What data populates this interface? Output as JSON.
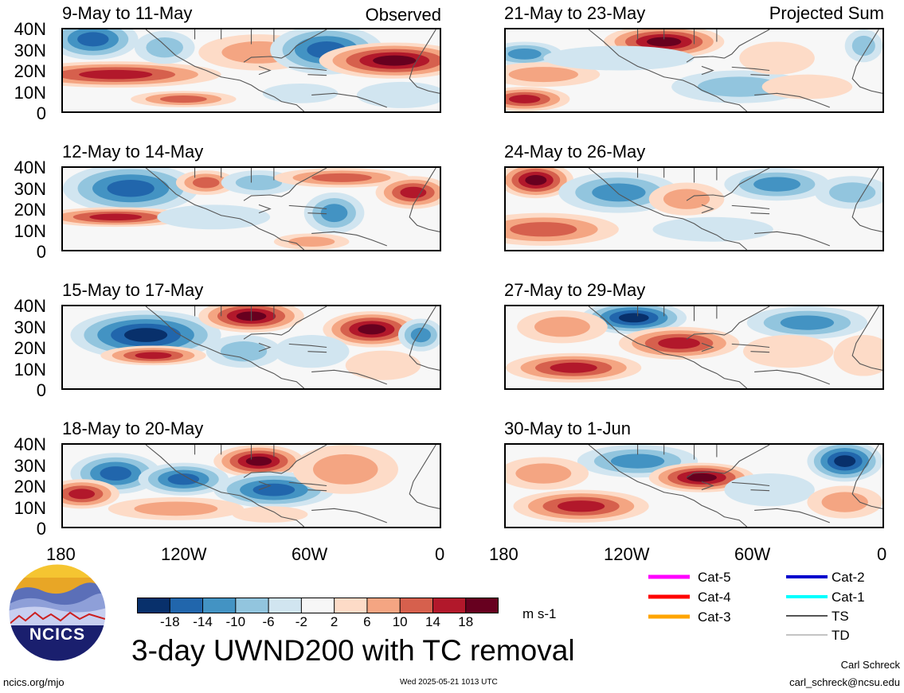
{
  "header": {
    "left_label": "Observed",
    "right_label": "Projected Sum"
  },
  "panels": [
    {
      "title": "9-May to 11-May",
      "pattern": 0
    },
    {
      "title": "12-May to 14-May",
      "pattern": 1
    },
    {
      "title": "15-May to 17-May",
      "pattern": 2
    },
    {
      "title": "18-May to 20-May",
      "pattern": 3
    },
    {
      "title": "21-May to 23-May",
      "pattern": 4
    },
    {
      "title": "24-May to 26-May",
      "pattern": 5
    },
    {
      "title": "27-May to 29-May",
      "pattern": 6
    },
    {
      "title": "30-May to 1-Jun",
      "pattern": 7
    }
  ],
  "axes": {
    "lat_labels": [
      "40N",
      "30N",
      "20N",
      "10N",
      "0"
    ],
    "lon_labels": [
      "180",
      "120W",
      "60W",
      "0"
    ]
  },
  "colorbar": {
    "colors": [
      "#08306b",
      "#2166ac",
      "#4393c3",
      "#92c5de",
      "#d1e5f0",
      "#f7f7f7",
      "#fddbc7",
      "#f4a582",
      "#d6604d",
      "#b2182b",
      "#67001f"
    ],
    "tick_labels": [
      "-18",
      "-14",
      "-10",
      "-6",
      "-2",
      "2",
      "6",
      "10",
      "14",
      "18"
    ],
    "units": "m s-1"
  },
  "legend": {
    "items": [
      {
        "label": "Cat-5",
        "color": "#ff00ff"
      },
      {
        "label": "Cat-4",
        "color": "#ff0000"
      },
      {
        "label": "Cat-3",
        "color": "#ffa500"
      },
      {
        "label": "Cat-2",
        "color": "#0000cd"
      },
      {
        "label": "Cat-1",
        "color": "#00ffff"
      },
      {
        "label": "TS",
        "color": "#555555"
      },
      {
        "label": "TD",
        "color": "#b0b0b0"
      }
    ]
  },
  "logo": {
    "text": "NCICS"
  },
  "main_title": "3-day UWND200 with TC removal",
  "footer": {
    "url": "ncics.org/mjo",
    "timestamp": "Wed 2025-05-21 1013 UTC",
    "author": "Carl Schreck",
    "email": "carl_schreck@ncsu.edu"
  }
}
